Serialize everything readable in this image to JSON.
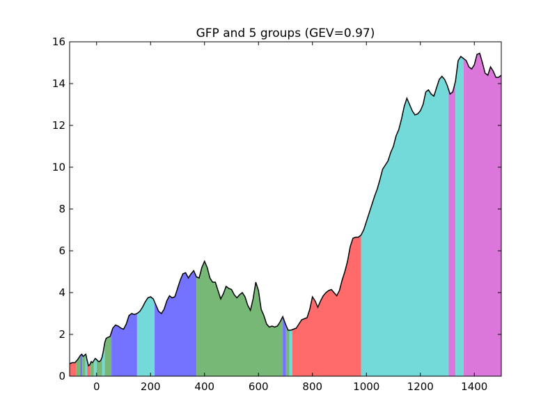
{
  "chart_data": {
    "type": "area",
    "title": "GFP and 5 groups (GEV=0.97)",
    "xlabel": "",
    "ylabel": "",
    "xlim": [
      -100,
      1500
    ],
    "ylim": [
      0,
      16
    ],
    "x_ticks": [
      0,
      200,
      400,
      600,
      800,
      1000,
      1200,
      1400
    ],
    "y_ticks": [
      0,
      2,
      4,
      6,
      8,
      10,
      12,
      14,
      16
    ],
    "grid": false,
    "legend": "none",
    "line_color": "#000000",
    "group_colors": {
      "1": "#ff6b6b",
      "2": "#74d9d9",
      "3": "#7373ff",
      "4": "#77b877",
      "5": "#db77db"
    },
    "x": [
      -100,
      -90,
      -80,
      -70,
      -60,
      -55,
      -50,
      -45,
      -40,
      -35,
      -30,
      -25,
      -20,
      -15,
      -10,
      -5,
      0,
      5,
      10,
      15,
      20,
      25,
      30,
      35,
      40,
      50,
      60,
      70,
      80,
      90,
      100,
      110,
      120,
      130,
      140,
      150,
      160,
      170,
      180,
      190,
      200,
      210,
      220,
      230,
      240,
      250,
      260,
      270,
      280,
      290,
      300,
      310,
      320,
      330,
      340,
      350,
      360,
      370,
      380,
      390,
      400,
      410,
      420,
      430,
      440,
      450,
      460,
      470,
      480,
      490,
      500,
      510,
      520,
      530,
      540,
      550,
      560,
      570,
      580,
      590,
      600,
      610,
      620,
      630,
      640,
      650,
      660,
      670,
      680,
      690,
      700,
      710,
      720,
      730,
      740,
      750,
      760,
      770,
      780,
      790,
      800,
      810,
      820,
      830,
      840,
      850,
      860,
      870,
      880,
      890,
      900,
      910,
      920,
      930,
      940,
      950,
      960,
      970,
      980,
      990,
      1000,
      1010,
      1020,
      1030,
      1040,
      1050,
      1060,
      1070,
      1080,
      1090,
      1100,
      1110,
      1120,
      1130,
      1140,
      1150,
      1160,
      1170,
      1180,
      1190,
      1200,
      1210,
      1220,
      1230,
      1240,
      1250,
      1260,
      1270,
      1280,
      1290,
      1300,
      1310,
      1320,
      1330,
      1340,
      1350,
      1360,
      1370,
      1380,
      1390,
      1400,
      1410,
      1420,
      1430,
      1440,
      1450,
      1460,
      1470,
      1480,
      1490,
      1500
    ],
    "gfp": [
      0.6,
      0.65,
      0.65,
      0.8,
      1.0,
      1.05,
      0.95,
      1.0,
      1.05,
      0.75,
      0.5,
      0.55,
      0.7,
      0.65,
      0.75,
      0.85,
      0.8,
      0.72,
      0.7,
      0.75,
      0.9,
      1.2,
      1.6,
      1.8,
      1.85,
      1.9,
      2.3,
      2.45,
      2.4,
      2.3,
      2.25,
      2.5,
      2.9,
      3.0,
      2.95,
      3.0,
      3.1,
      3.3,
      3.55,
      3.75,
      3.8,
      3.7,
      3.4,
      3.1,
      3.0,
      3.2,
      3.6,
      3.85,
      3.75,
      3.8,
      4.2,
      4.6,
      4.9,
      4.95,
      4.7,
      4.9,
      5.05,
      4.75,
      4.7,
      5.2,
      5.5,
      5.2,
      4.7,
      4.5,
      4.5,
      4.1,
      3.7,
      3.95,
      4.3,
      4.2,
      4.15,
      3.9,
      3.75,
      3.9,
      4.0,
      3.8,
      3.4,
      3.15,
      3.7,
      4.5,
      4.1,
      3.2,
      2.9,
      2.5,
      2.35,
      2.4,
      2.35,
      2.4,
      2.6,
      2.85,
      2.5,
      2.2,
      2.2,
      2.25,
      2.3,
      2.5,
      2.7,
      2.75,
      2.8,
      3.2,
      3.8,
      3.6,
      3.3,
      3.6,
      3.85,
      4.0,
      4.1,
      4.15,
      4.0,
      3.85,
      4.1,
      4.6,
      5.0,
      5.5,
      6.2,
      6.6,
      6.65,
      6.65,
      6.75,
      7.0,
      7.4,
      7.8,
      8.2,
      8.6,
      8.95,
      9.4,
      9.9,
      10.1,
      10.3,
      10.7,
      11.0,
      11.5,
      11.8,
      12.3,
      12.9,
      13.3,
      13.0,
      12.7,
      12.5,
      12.55,
      12.7,
      13.0,
      13.6,
      13.7,
      13.5,
      13.4,
      13.8,
      14.2,
      14.35,
      14.2,
      13.9,
      13.5,
      13.6,
      14.1,
      15.1,
      15.3,
      15.2,
      15.1,
      14.8,
      14.7,
      14.9,
      15.4,
      15.45,
      15.0,
      14.5,
      14.4,
      14.8,
      14.6,
      14.3,
      14.3,
      14.4
    ],
    "segments": [
      {
        "start": -100,
        "end": -75,
        "group": 1
      },
      {
        "start": -75,
        "end": -60,
        "group": 4
      },
      {
        "start": -60,
        "end": -53,
        "group": 3
      },
      {
        "start": -53,
        "end": -42,
        "group": 4
      },
      {
        "start": -42,
        "end": -35,
        "group": 2
      },
      {
        "start": -35,
        "end": -25,
        "group": 1
      },
      {
        "start": -25,
        "end": -10,
        "group": 4
      },
      {
        "start": -10,
        "end": 0,
        "group": 2
      },
      {
        "start": 0,
        "end": 20,
        "group": 4
      },
      {
        "start": 20,
        "end": 30,
        "group": 2
      },
      {
        "start": 30,
        "end": 55,
        "group": 4
      },
      {
        "start": 55,
        "end": 150,
        "group": 3
      },
      {
        "start": 150,
        "end": 215,
        "group": 2
      },
      {
        "start": 215,
        "end": 370,
        "group": 3
      },
      {
        "start": 370,
        "end": 690,
        "group": 4
      },
      {
        "start": 690,
        "end": 702,
        "group": 3
      },
      {
        "start": 702,
        "end": 715,
        "group": 4
      },
      {
        "start": 715,
        "end": 725,
        "group": 2
      },
      {
        "start": 725,
        "end": 980,
        "group": 1
      },
      {
        "start": 980,
        "end": 1305,
        "group": 2
      },
      {
        "start": 1305,
        "end": 1330,
        "group": 5
      },
      {
        "start": 1330,
        "end": 1360,
        "group": 2
      },
      {
        "start": 1360,
        "end": 1500,
        "group": 5
      }
    ]
  }
}
